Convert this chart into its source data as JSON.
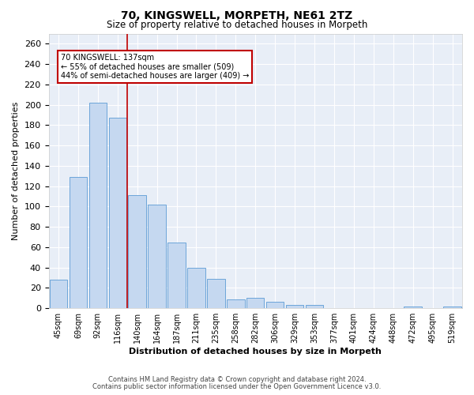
{
  "title": "70, KINGSWELL, MORPETH, NE61 2TZ",
  "subtitle": "Size of property relative to detached houses in Morpeth",
  "xlabel": "Distribution of detached houses by size in Morpeth",
  "ylabel": "Number of detached properties",
  "categories": [
    "45sqm",
    "69sqm",
    "92sqm",
    "116sqm",
    "140sqm",
    "164sqm",
    "187sqm",
    "211sqm",
    "235sqm",
    "258sqm",
    "282sqm",
    "306sqm",
    "329sqm",
    "353sqm",
    "377sqm",
    "401sqm",
    "424sqm",
    "448sqm",
    "472sqm",
    "495sqm",
    "519sqm"
  ],
  "values": [
    28,
    129,
    202,
    187,
    111,
    102,
    65,
    40,
    29,
    9,
    10,
    6,
    3,
    3,
    0,
    0,
    0,
    0,
    2,
    0,
    2
  ],
  "bar_color": "#c5d8f0",
  "bar_edge_color": "#5b9bd5",
  "marker_label": "70 KINGSWELL: 137sqm",
  "annotation_line1": "← 55% of detached houses are smaller (509)",
  "annotation_line2": "44% of semi-detached houses are larger (409) →",
  "marker_color": "#c00000",
  "ylim": [
    0,
    270
  ],
  "yticks": [
    0,
    20,
    40,
    60,
    80,
    100,
    120,
    140,
    160,
    180,
    200,
    220,
    240,
    260
  ],
  "bg_color": "#e8eef7",
  "grid_color": "#ffffff",
  "footer_line1": "Contains HM Land Registry data © Crown copyright and database right 2024.",
  "footer_line2": "Contains public sector information licensed under the Open Government Licence v3.0."
}
